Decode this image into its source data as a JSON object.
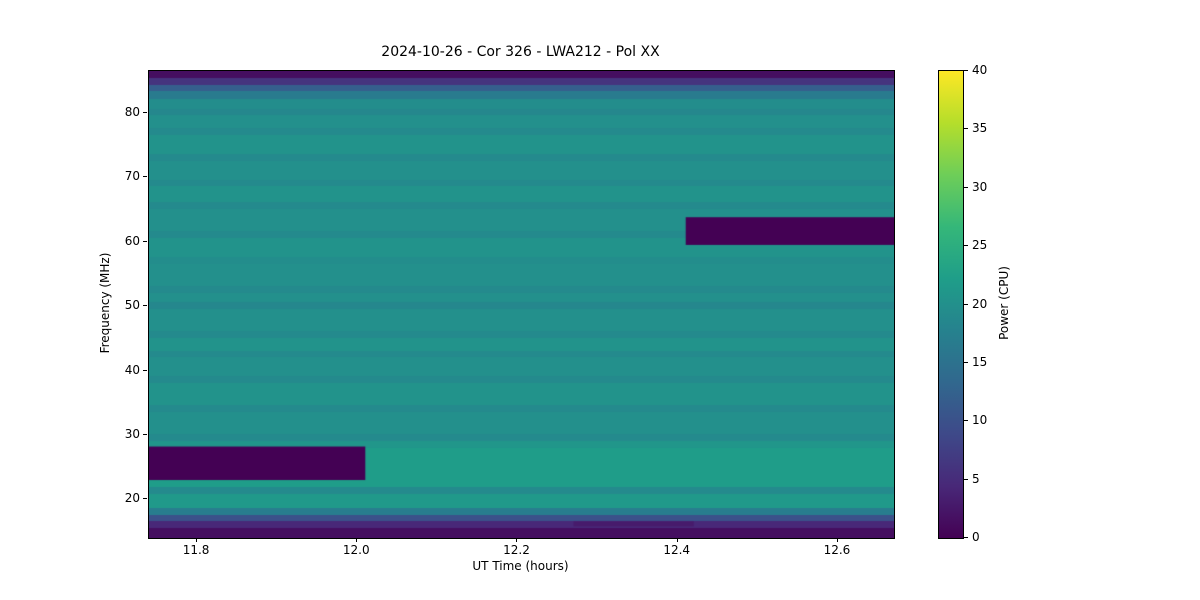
{
  "chart_data": {
    "type": "heatmap",
    "title": "2024-10-26 - Cor 326 - LWA212 - Pol XX",
    "xlabel": "UT Time (hours)",
    "ylabel": "Frequency (MHz)",
    "colorbar_label": "Power (CPU)",
    "xlim": [
      11.74,
      12.67
    ],
    "ylim": [
      14.0,
      86.5
    ],
    "clim": [
      0,
      40
    ],
    "xticks": [
      11.8,
      12.0,
      12.2,
      12.4,
      12.6
    ],
    "xtick_labels": [
      "11.8",
      "12.0",
      "12.2",
      "12.4",
      "12.6"
    ],
    "yticks": [
      20,
      30,
      40,
      50,
      60,
      70,
      80
    ],
    "ytick_labels": [
      "20",
      "30",
      "40",
      "50",
      "60",
      "70",
      "80"
    ],
    "colorbar_ticks": [
      0,
      5,
      10,
      15,
      20,
      25,
      30,
      35,
      40
    ],
    "colorbar_tick_labels": [
      "0",
      "5",
      "10",
      "15",
      "20",
      "25",
      "30",
      "35",
      "40"
    ],
    "colormap": "viridis",
    "colormap_stops": [
      "#440154",
      "#482878",
      "#3e4989",
      "#31688e",
      "#26828e",
      "#1f9e89",
      "#35b779",
      "#6ece58",
      "#b5de2b",
      "#fde725"
    ],
    "background_value": 20,
    "bands": [
      {
        "f_high": 86.5,
        "f_low": 85.4,
        "v": 1.5
      },
      {
        "f_high": 85.4,
        "f_low": 84.4,
        "v": 6
      },
      {
        "f_high": 84.4,
        "f_low": 83.4,
        "v": 12
      },
      {
        "f_high": 83.4,
        "f_low": 82.2,
        "v": 16.5
      },
      {
        "f_high": 82.2,
        "f_low": 80.6,
        "v": 19.5
      },
      {
        "f_high": 80.6,
        "f_low": 79.6,
        "v": 18.5
      },
      {
        "f_high": 79.6,
        "f_low": 77.6,
        "v": 20
      },
      {
        "f_high": 77.6,
        "f_low": 76.6,
        "v": 19
      },
      {
        "f_high": 76.6,
        "f_low": 73.6,
        "v": 20.5
      },
      {
        "f_high": 73.6,
        "f_low": 72.6,
        "v": 19
      },
      {
        "f_high": 72.6,
        "f_low": 69.6,
        "v": 20
      },
      {
        "f_high": 69.6,
        "f_low": 68.6,
        "v": 19
      },
      {
        "f_high": 68.6,
        "f_low": 66.1,
        "v": 20.5
      },
      {
        "f_high": 66.1,
        "f_low": 65.1,
        "v": 19
      },
      {
        "f_high": 65.1,
        "f_low": 61.6,
        "v": 20
      },
      {
        "f_high": 61.6,
        "f_low": 60.6,
        "v": 19
      },
      {
        "f_high": 60.6,
        "f_low": 57.6,
        "v": 20.5
      },
      {
        "f_high": 57.6,
        "f_low": 56.6,
        "v": 19.5
      },
      {
        "f_high": 56.6,
        "f_low": 53.1,
        "v": 20
      },
      {
        "f_high": 53.1,
        "f_low": 52.1,
        "v": 19
      },
      {
        "f_high": 52.1,
        "f_low": 50.6,
        "v": 20
      },
      {
        "f_high": 50.6,
        "f_low": 49.6,
        "v": 18.5
      },
      {
        "f_high": 49.6,
        "f_low": 46.1,
        "v": 20
      },
      {
        "f_high": 46.1,
        "f_low": 45.1,
        "v": 19
      },
      {
        "f_high": 45.1,
        "f_low": 43.1,
        "v": 20.5
      },
      {
        "f_high": 43.1,
        "f_low": 42.1,
        "v": 19
      },
      {
        "f_high": 42.1,
        "f_low": 39.1,
        "v": 20
      },
      {
        "f_high": 39.1,
        "f_low": 38.1,
        "v": 19
      },
      {
        "f_high": 38.1,
        "f_low": 34.6,
        "v": 20.5
      },
      {
        "f_high": 34.6,
        "f_low": 33.6,
        "v": 19
      },
      {
        "f_high": 33.6,
        "f_low": 30.1,
        "v": 20
      },
      {
        "f_high": 30.1,
        "f_low": 29.1,
        "v": 19
      },
      {
        "f_high": 29.1,
        "f_low": 27.9,
        "v": 21
      },
      {
        "f_high": 27.9,
        "f_low": 21.9,
        "v": 22
      },
      {
        "f_high": 21.9,
        "f_low": 20.9,
        "v": 19
      },
      {
        "f_high": 20.9,
        "f_low": 18.6,
        "v": 21.5
      },
      {
        "f_high": 18.6,
        "f_low": 17.6,
        "v": 17
      },
      {
        "f_high": 17.6,
        "f_low": 16.6,
        "v": 10
      },
      {
        "f_high": 16.6,
        "f_low": 15.6,
        "v": 4.5
      },
      {
        "f_high": 15.6,
        "f_low": 14.0,
        "v": 1.5
      }
    ],
    "masked_regions": [
      {
        "t0": 11.74,
        "t1": 12.01,
        "f0": 23.0,
        "f1": 28.2,
        "v": 0
      },
      {
        "t0": 12.41,
        "t1": 12.67,
        "f0": 59.5,
        "f1": 63.8,
        "v": 0
      },
      {
        "t0": 12.27,
        "t1": 12.42,
        "f0": 15.8,
        "f1": 16.6,
        "v": 3
      }
    ]
  }
}
